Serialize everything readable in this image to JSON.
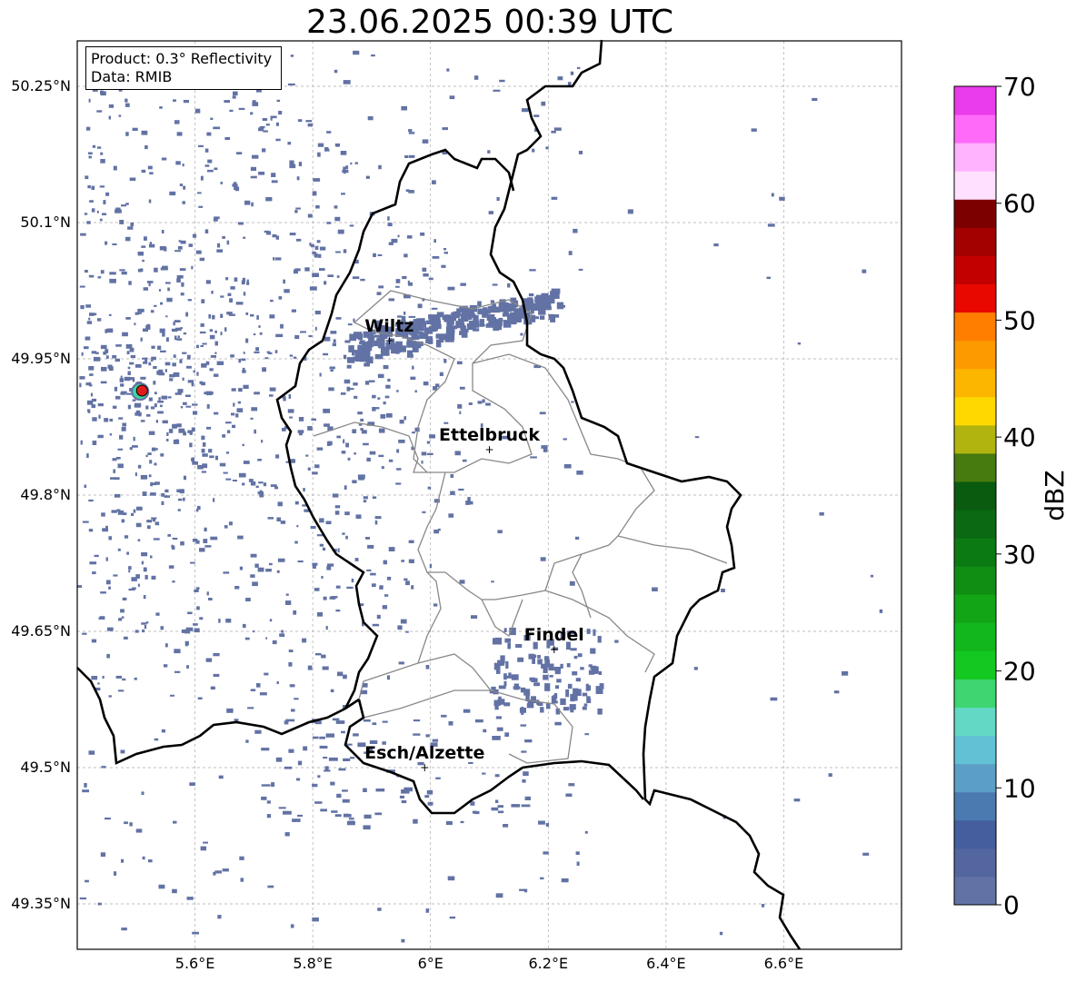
{
  "title": "23.06.2025 00:39 UTC",
  "product_box": {
    "line1": "Product: 0.3° Reflectivity",
    "line2": "Data: RMIB"
  },
  "map": {
    "lon_ticks": [
      "5.6°E",
      "5.8°E",
      "6°E",
      "6.2°E",
      "6.4°E",
      "6.6°E"
    ],
    "lat_ticks": [
      "50.25°N",
      "50.1°N",
      "49.95°N",
      "49.8°N",
      "49.65°N",
      "49.5°N",
      "49.35°N"
    ],
    "lon_values": [
      5.6,
      5.8,
      6.0,
      6.2,
      6.4,
      6.6
    ],
    "lat_values": [
      50.25,
      50.1,
      49.95,
      49.8,
      49.65,
      49.5,
      49.35
    ],
    "extent": {
      "lon_min": 5.4,
      "lon_max": 6.8,
      "lat_min": 49.3,
      "lat_max": 50.3
    },
    "gridlines": true,
    "cities": [
      {
        "name": "Wiltz",
        "lon": 5.93,
        "lat": 49.97
      },
      {
        "name": "Ettelbruck",
        "lon": 6.1,
        "lat": 49.85
      },
      {
        "name": "Findel",
        "lon": 6.21,
        "lat": 49.63
      },
      {
        "name": "Esch/Alzette",
        "lon": 5.99,
        "lat": 49.5
      }
    ],
    "radar_site": {
      "lon": 5.51,
      "lat": 49.915,
      "color": "#e31a1c"
    },
    "echo_color": "#6272a4"
  },
  "colorbar": {
    "label": "dBZ",
    "ticks": [
      "0",
      "10",
      "20",
      "30",
      "40",
      "50",
      "60",
      "70"
    ],
    "colors": [
      "#6272a4",
      "#5466a0",
      "#445e9e",
      "#4a7ab0",
      "#5b9fc6",
      "#63c1d6",
      "#62d8c5",
      "#3dd670",
      "#13c821",
      "#12b81b",
      "#12a617",
      "#108e14",
      "#0b7a12",
      "#0a6912",
      "#0a5a10",
      "#477a0f",
      "#b1b40e",
      "#ffd800",
      "#fdb600",
      "#fd9a00",
      "#ff7e00",
      "#e80800",
      "#c20000",
      "#a30000",
      "#7c0000",
      "#ffe1ff",
      "#ffb3ff",
      "#ff6af9",
      "#ea3cea"
    ]
  }
}
